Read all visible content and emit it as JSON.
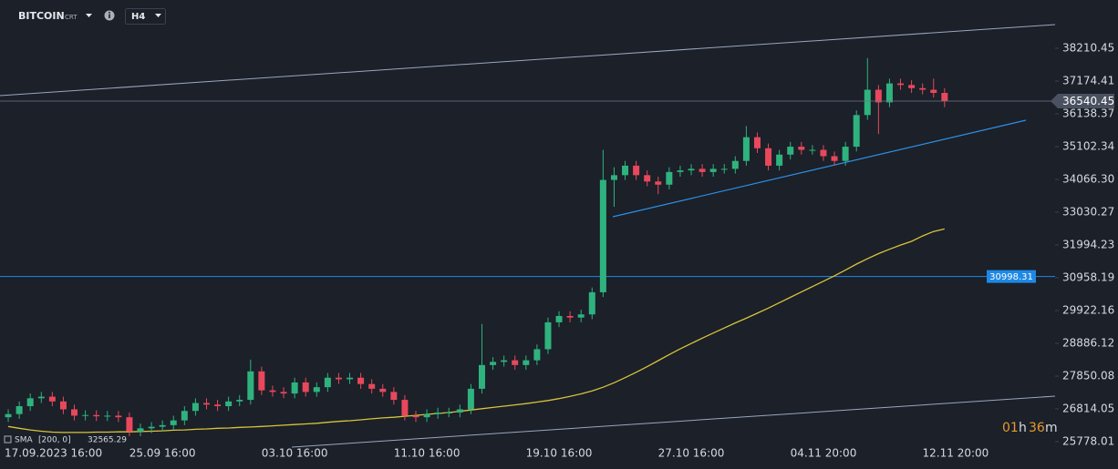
{
  "header": {
    "symbol": "BITCOIN",
    "suffix": "CRT",
    "timeframe": "H4"
  },
  "countdown": {
    "hours": "01",
    "h": "h",
    "minutes": "36",
    "m": "m"
  },
  "chart_data": {
    "type": "candlestick",
    "x": [
      null,
      null,
      "17.09.2023 16:00",
      null,
      null,
      null,
      null,
      null,
      null,
      null,
      null,
      null,
      null,
      null,
      "25.09 16:00",
      null,
      null,
      null,
      null,
      null,
      null,
      null,
      null,
      null,
      null,
      null,
      "03.10 16:00",
      null,
      null,
      null,
      null,
      null,
      null,
      null,
      null,
      null,
      null,
      null,
      "11.10 16:00",
      null,
      null,
      null,
      null,
      null,
      null,
      null,
      null,
      null,
      null,
      null,
      "19.10 16:00",
      null,
      null,
      null,
      null,
      null,
      null,
      null,
      null,
      null,
      null,
      null,
      "27.10 16:00",
      null,
      null,
      null,
      null,
      null,
      null,
      null,
      null,
      null,
      null,
      null,
      "04.11 20:00",
      null,
      null,
      null,
      null,
      null,
      null,
      null,
      null,
      null,
      null,
      null,
      "12.11 20:00",
      null
    ],
    "open": [
      26550,
      26650,
      26900,
      27150,
      27200,
      27050,
      26800,
      26600,
      26620,
      26580,
      26600,
      26550,
      26100,
      26200,
      26250,
      26300,
      26450,
      26750,
      27000,
      26950,
      26900,
      27050,
      27100,
      28000,
      27400,
      27350,
      27300,
      27650,
      27350,
      27500,
      27800,
      27750,
      27800,
      27600,
      27450,
      27350,
      27100,
      26600,
      26550,
      26650,
      26700,
      26700,
      26800,
      27450,
      28200,
      28300,
      28350,
      28200,
      28350,
      28700,
      29550,
      29750,
      29700,
      29800,
      30500,
      34050,
      34200,
      34500,
      34200,
      34000,
      33900,
      34300,
      34350,
      34400,
      34300,
      34400,
      34400,
      34650,
      35400,
      35050,
      34500,
      34850,
      35100,
      35000,
      35000,
      34800,
      34650,
      35100,
      36100,
      36900,
      36500,
      37100,
      37050,
      36950,
      36900,
      36800,
      null,
      null
    ],
    "high": [
      26800,
      27050,
      27300,
      27350,
      27350,
      27200,
      26950,
      26770,
      26770,
      26750,
      26750,
      26700,
      26350,
      26400,
      26450,
      26600,
      26900,
      27150,
      27150,
      27100,
      27200,
      27250,
      28370,
      28150,
      27550,
      27500,
      27800,
      27800,
      27650,
      27950,
      27950,
      27950,
      27950,
      27750,
      27600,
      27500,
      27250,
      26750,
      26800,
      26850,
      26850,
      26950,
      27600,
      29500,
      28450,
      28500,
      28500,
      28500,
      28850,
      29700,
      29900,
      29900,
      29950,
      30650,
      35000,
      34450,
      34650,
      34650,
      34350,
      34150,
      34450,
      34500,
      34550,
      34550,
      34550,
      34550,
      34800,
      35750,
      35550,
      35200,
      35000,
      35250,
      35250,
      35150,
      35150,
      34950,
      35250,
      36250,
      37900,
      37050,
      37250,
      37250,
      37200,
      37100,
      37250,
      36950,
      null,
      null
    ],
    "low": [
      26400,
      26500,
      26750,
      27000,
      26900,
      26650,
      26450,
      26450,
      26430,
      26430,
      26400,
      25950,
      25950,
      26050,
      26100,
      26150,
      26300,
      26600,
      26800,
      26750,
      26750,
      26900,
      26950,
      27250,
      27200,
      27150,
      27150,
      27200,
      27200,
      27350,
      27600,
      27600,
      27450,
      27300,
      27200,
      26950,
      26450,
      26400,
      26400,
      26500,
      26550,
      26550,
      26650,
      27300,
      28050,
      28150,
      28050,
      28050,
      28200,
      28550,
      29400,
      29550,
      29550,
      29650,
      30350,
      33200,
      34050,
      34050,
      33850,
      33600,
      33750,
      34150,
      34200,
      34150,
      34150,
      34250,
      34250,
      34500,
      34900,
      34350,
      34350,
      34700,
      34850,
      34850,
      34650,
      34500,
      34500,
      34950,
      35950,
      35500,
      36350,
      36900,
      36800,
      36750,
      36650,
      36350,
      null,
      null
    ],
    "close": [
      26650,
      26900,
      27150,
      27200,
      27050,
      26800,
      26600,
      26620,
      26580,
      26600,
      26550,
      26100,
      26200,
      26250,
      26300,
      26450,
      26750,
      27000,
      26950,
      26900,
      27050,
      27100,
      28000,
      27400,
      27350,
      27300,
      27650,
      27350,
      27500,
      27800,
      27750,
      27800,
      27600,
      27450,
      27350,
      27100,
      26600,
      26550,
      26650,
      26700,
      26700,
      26800,
      27450,
      28200,
      28300,
      28350,
      28200,
      28350,
      28700,
      29550,
      29750,
      29700,
      29800,
      30500,
      34050,
      34200,
      34500,
      34200,
      34000,
      33900,
      34300,
      34350,
      34400,
      34300,
      34400,
      34400,
      34650,
      35400,
      35050,
      34500,
      34850,
      35100,
      35000,
      35000,
      34800,
      34650,
      35100,
      36100,
      36900,
      36500,
      37100,
      37050,
      36950,
      36900,
      36800,
      36540,
      null,
      null
    ],
    "up_color": "#2fb37e",
    "down_color": "#e8485c",
    "sma": {
      "name": "SMA",
      "params": "[200, 0]",
      "value": 32565.29,
      "color": "#d9c33a",
      "values": [
        26260,
        26200,
        26150,
        26110,
        26080,
        26070,
        26070,
        26070,
        26080,
        26080,
        26090,
        26090,
        26100,
        26110,
        26120,
        26140,
        26150,
        26170,
        26180,
        26200,
        26210,
        26230,
        26240,
        26260,
        26280,
        26300,
        26320,
        26340,
        26360,
        26390,
        26420,
        26440,
        26470,
        26500,
        26530,
        26550,
        26580,
        26610,
        26640,
        26670,
        26700,
        26740,
        26780,
        26820,
        26860,
        26900,
        26940,
        26980,
        27030,
        27080,
        27140,
        27210,
        27290,
        27380,
        27500,
        27640,
        27800,
        27970,
        28150,
        28340,
        28530,
        28710,
        28880,
        29050,
        29210,
        29370,
        29530,
        29680,
        29840,
        30000,
        30170,
        30340,
        30510,
        30680,
        30850,
        31020,
        31200,
        31390,
        31560,
        31720,
        31860,
        31990,
        32110,
        32280,
        32420,
        32500,
        null,
        null
      ]
    },
    "current_price": 36540.45,
    "hline": {
      "value": 30998.31,
      "color": "#1e88e5"
    },
    "ylim": [
      25720.4,
      39735.7
    ],
    "yticks": [
      38210.45,
      37174.41,
      36138.37,
      35102.34,
      {
        "value": 34066.3,
        "label": "34066.30"
      },
      33030.27,
      31994.23,
      30958.19,
      29922.16,
      28886.12,
      27850.08,
      26814.05,
      25778.01
    ],
    "grid": false
  }
}
